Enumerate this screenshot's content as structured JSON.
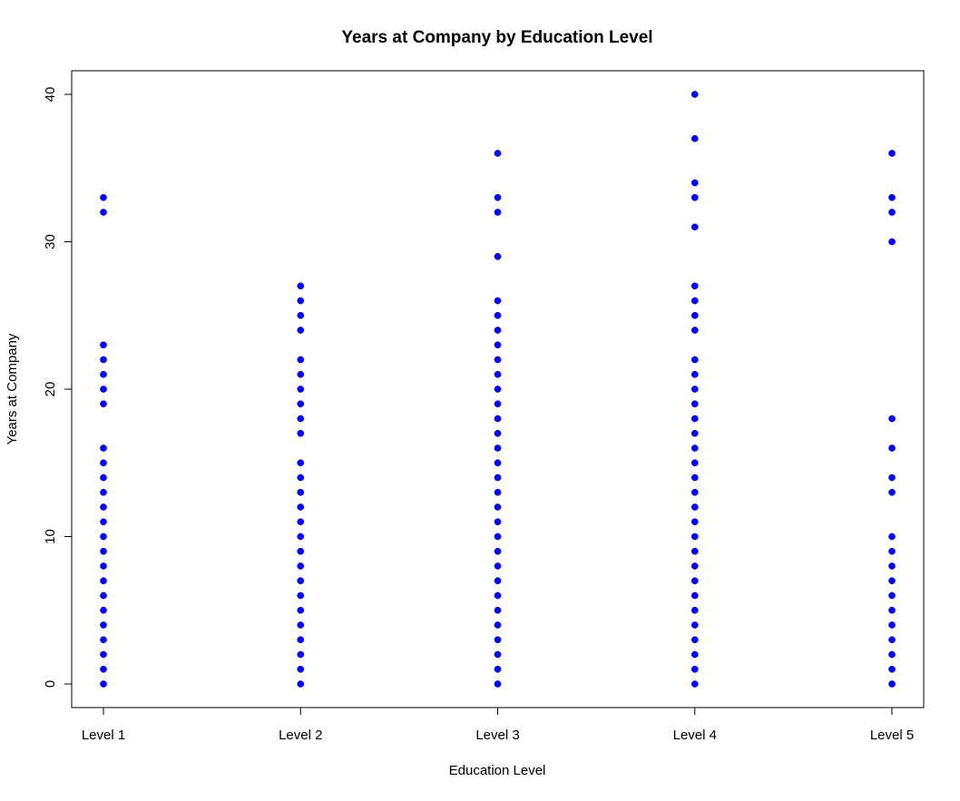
{
  "chart_data": {
    "type": "scatter",
    "title": "Years at Company by Education Level",
    "xlabel": "Education Level",
    "ylabel": "Years at Company",
    "categories": [
      "Level 1",
      "Level 2",
      "Level 3",
      "Level 4",
      "Level 5"
    ],
    "y_ticks": [
      "0",
      "10",
      "20",
      "30",
      "40"
    ],
    "ylim": [
      -1.6,
      41.6
    ],
    "grid": false,
    "legend": "none",
    "point_color": "#0000ff",
    "series": [
      {
        "category": "Level 1",
        "values": [
          0,
          1,
          2,
          3,
          4,
          5,
          6,
          7,
          8,
          9,
          10,
          11,
          12,
          13,
          14,
          15,
          16,
          19,
          20,
          21,
          22,
          23,
          32,
          33
        ]
      },
      {
        "category": "Level 2",
        "values": [
          0,
          1,
          2,
          3,
          4,
          5,
          6,
          7,
          8,
          9,
          10,
          11,
          12,
          13,
          14,
          15,
          17,
          18,
          19,
          20,
          21,
          22,
          24,
          25,
          26,
          27
        ]
      },
      {
        "category": "Level 3",
        "values": [
          0,
          1,
          2,
          3,
          4,
          5,
          6,
          7,
          8,
          9,
          10,
          11,
          12,
          13,
          14,
          15,
          16,
          17,
          18,
          19,
          20,
          21,
          22,
          23,
          24,
          25,
          26,
          29,
          32,
          33,
          36
        ]
      },
      {
        "category": "Level 4",
        "values": [
          0,
          1,
          2,
          3,
          4,
          5,
          6,
          7,
          8,
          9,
          10,
          11,
          12,
          13,
          14,
          15,
          16,
          17,
          18,
          19,
          20,
          21,
          22,
          24,
          25,
          26,
          27,
          31,
          33,
          34,
          37,
          40
        ]
      },
      {
        "category": "Level 5",
        "values": [
          0,
          1,
          2,
          3,
          4,
          5,
          6,
          7,
          8,
          9,
          10,
          13,
          14,
          16,
          18,
          30,
          32,
          33,
          36
        ]
      }
    ]
  }
}
